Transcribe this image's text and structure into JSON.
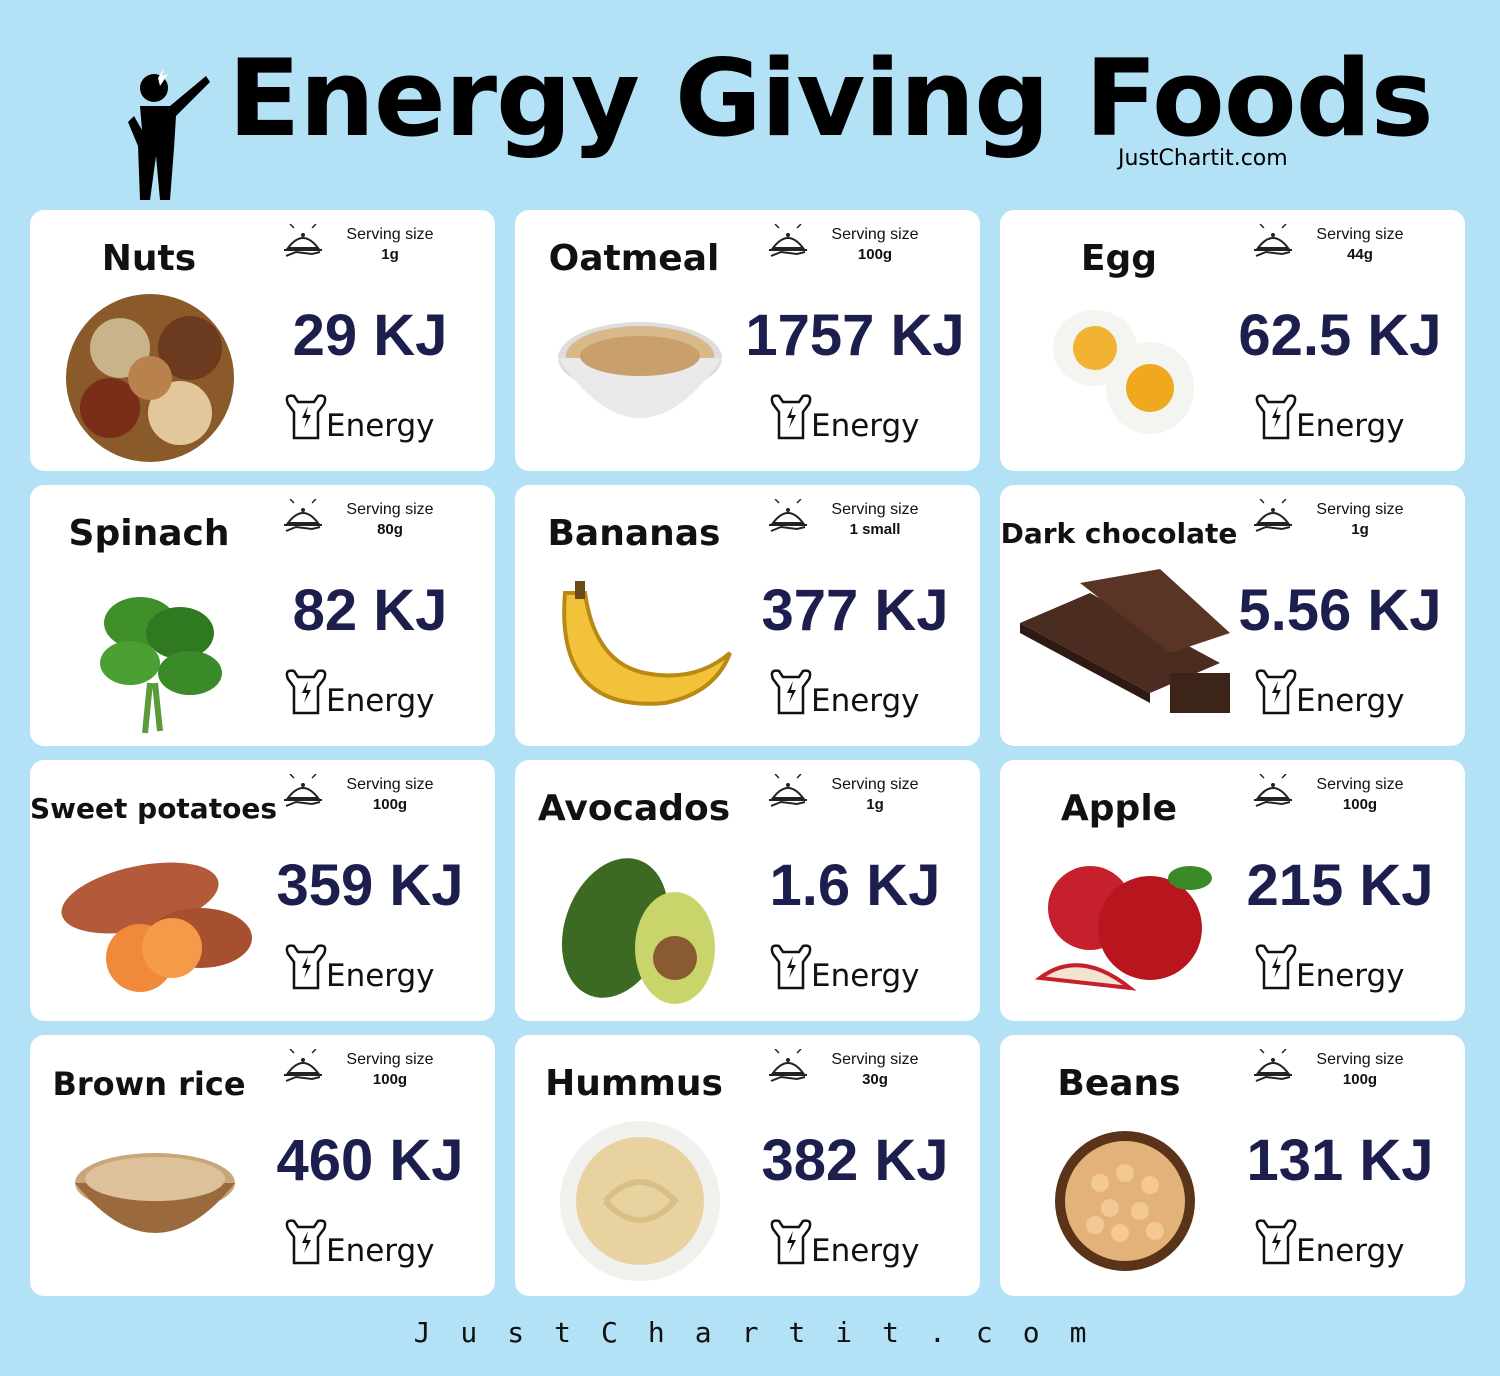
{
  "header": {
    "title": "Energy Giving Foods",
    "subtitle": "JustChartit.com",
    "icon": "energetic-person-icon"
  },
  "serving_label": "Serving size",
  "energy_label": "Energy",
  "foods": [
    {
      "name": "Nuts",
      "serving": "1g",
      "energy": "29 KJ"
    },
    {
      "name": "Oatmeal",
      "serving": "100g",
      "energy": "1757 KJ"
    },
    {
      "name": "Egg",
      "serving": "44g",
      "energy": "62.5 KJ"
    },
    {
      "name": "Spinach",
      "serving": "80g",
      "energy": "82 KJ"
    },
    {
      "name": "Bananas",
      "serving": "1 small",
      "energy": "377 KJ"
    },
    {
      "name": "Dark chocolate",
      "serving": "1g",
      "energy": "5.56 KJ"
    },
    {
      "name": "Sweet potatoes",
      "serving": "100g",
      "energy": "359 KJ"
    },
    {
      "name": "Avocados",
      "serving": "1g",
      "energy": "1.6 KJ"
    },
    {
      "name": "Apple",
      "serving": "100g",
      "energy": "215 KJ"
    },
    {
      "name": "Brown rice",
      "serving": "100g",
      "energy": "460 KJ"
    },
    {
      "name": "Hummus",
      "serving": "30g",
      "energy": "382 KJ"
    },
    {
      "name": "Beans",
      "serving": "100g",
      "energy": "131 KJ"
    }
  ],
  "footer": "JustChartit.com",
  "colors": {
    "background": "#b3e1f5",
    "card": "#ffffff",
    "energy_value": "#1c1e4e"
  }
}
